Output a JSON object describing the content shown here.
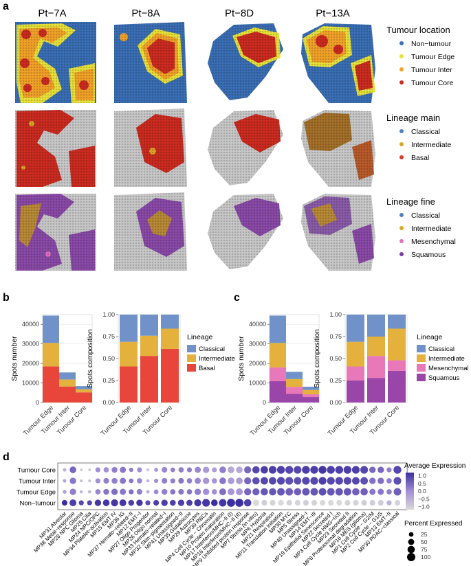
{
  "panel_a": {
    "label": "a",
    "samples": [
      "Pt−7A",
      "Pt−8A",
      "Pt−8D",
      "Pt−13A"
    ],
    "legends": [
      {
        "title": "Tumour location",
        "items": [
          {
            "label": "Non−tumour",
            "color": "#3a6fb5"
          },
          {
            "label": "Tumour Edge",
            "color": "#e8e23a"
          },
          {
            "label": "Tumour Inter",
            "color": "#f2a228"
          },
          {
            "label": "Tumour Core",
            "color": "#cc2b20"
          }
        ]
      },
      {
        "title": "Lineage main",
        "items": [
          {
            "label": "Classical",
            "color": "#4f7fc1"
          },
          {
            "label": "Intermediate",
            "color": "#d8a526"
          },
          {
            "label": "Basal",
            "color": "#d93a2b"
          }
        ]
      },
      {
        "title": "Lineage fine",
        "items": [
          {
            "label": "Classical",
            "color": "#4f7fc1"
          },
          {
            "label": "Intermediate",
            "color": "#d8a526"
          },
          {
            "label": "Mesenchymal",
            "color": "#e070c0"
          },
          {
            "label": "Squamous",
            "color": "#7a3aa8"
          }
        ]
      }
    ]
  },
  "panel_b_label": "b",
  "panel_c_label": "c",
  "panel_d_label": "d",
  "chart_data": [
    {
      "id": "b-counts",
      "type": "bar",
      "stacked": true,
      "categories": [
        "Tumour Edge",
        "Tumour Inter",
        "Tumour Core"
      ],
      "ylabel": "Spots number",
      "ylim": [
        0,
        45000
      ],
      "yticks": [
        "0",
        "10000",
        "20000",
        "30000",
        "40000"
      ],
      "series": [
        {
          "name": "Basal",
          "color": "#e8463a",
          "values": [
            18500,
            8200,
            5200
          ]
        },
        {
          "name": "Intermediate",
          "color": "#e3b13c",
          "values": [
            12000,
            3600,
            1600
          ]
        },
        {
          "name": "Classical",
          "color": "#7092c9",
          "values": [
            14000,
            3600,
            1600
          ]
        }
      ]
    },
    {
      "id": "b-composition",
      "type": "bar",
      "stacked": true,
      "categories": [
        "Tumour Edge",
        "Tumour Inter",
        "Tumour Core"
      ],
      "ylabel": "Spots composition",
      "ylim": [
        0,
        1
      ],
      "yticks": [
        "0.00",
        "0.25",
        "0.50",
        "0.75",
        "1.00"
      ],
      "legend_title": "Lineage",
      "legend": [
        "Classical",
        "Intermediate",
        "Basal"
      ],
      "series": [
        {
          "name": "Basal",
          "color": "#e8463a",
          "values": [
            0.41,
            0.53,
            0.61
          ]
        },
        {
          "name": "Intermediate",
          "color": "#e3b13c",
          "values": [
            0.28,
            0.23,
            0.23
          ]
        },
        {
          "name": "Classical",
          "color": "#7092c9",
          "values": [
            0.31,
            0.24,
            0.16
          ]
        }
      ]
    },
    {
      "id": "c-counts",
      "type": "bar",
      "stacked": true,
      "categories": [
        "Tumour Edge",
        "Tumour Inter",
        "Tumour Core"
      ],
      "ylabel": "Spots number",
      "ylim": [
        0,
        45000
      ],
      "yticks": [
        "0",
        "10000",
        "20000",
        "30000",
        "40000"
      ],
      "series": [
        {
          "name": "Squamous",
          "color": "#9a46a8",
          "values": [
            11000,
            4400,
            2800
          ]
        },
        {
          "name": "Mesenchymal",
          "color": "#e878b8",
          "values": [
            7000,
            3600,
            1400
          ]
        },
        {
          "name": "Intermediate",
          "color": "#e3b13c",
          "values": [
            12500,
            4000,
            2200
          ]
        },
        {
          "name": "Classical",
          "color": "#7092c9",
          "values": [
            14000,
            3700,
            1700
          ]
        }
      ]
    },
    {
      "id": "c-composition",
      "type": "bar",
      "stacked": true,
      "categories": [
        "Tumour Edge",
        "Tumour Inter",
        "Tumour Core"
      ],
      "ylabel": "Spots composition",
      "ylim": [
        0,
        1
      ],
      "yticks": [
        "0.00",
        "0.25",
        "0.50",
        "0.75",
        "1.00"
      ],
      "legend_title": "Lineage",
      "legend": [
        "Classical",
        "Intermediate",
        "Mesenchymal",
        "Squamous"
      ],
      "series": [
        {
          "name": "Squamous",
          "color": "#9a46a8",
          "values": [
            0.25,
            0.28,
            0.36
          ]
        },
        {
          "name": "Mesenchymal",
          "color": "#e878b8",
          "values": [
            0.16,
            0.25,
            0.12
          ]
        },
        {
          "name": "Intermediate",
          "color": "#e3b13c",
          "values": [
            0.28,
            0.22,
            0.36
          ]
        },
        {
          "name": "Classical",
          "color": "#7092c9",
          "values": [
            0.31,
            0.25,
            0.16
          ]
        }
      ]
    },
    {
      "id": "d-dotplot",
      "type": "scatter",
      "subtype": "dotplot",
      "rows": [
        "Tumour Core",
        "Tumour Inter",
        "Tumour Edge",
        "Non−tumour"
      ],
      "columns": [
        "MP31 Alveolar",
        "MP38 Metal−response",
        "MP28 NPC Glioma",
        "MP25 Cilia",
        "MP24 NPC/OPC",
        "MP34 Platelet−activation",
        "MP15 EMT IV",
        "MP36 IG",
        "MP37 Hemato−related−II",
        "MP12 EMT−I",
        "MP27 Oligo Progenitor",
        "MP26 Oligo normal",
        "MP33 Hemato−related−I",
        "MP32 Skin−pigmentation",
        "MP41 Unassigned−II",
        "MP35 Glutathione",
        "MP29 Astrocytes",
        "MP39 RBCs",
        "MP4 Cell Cycle − Chromatin",
        "MP10 Protein maturation",
        "MP17 Interferon/MHC−II (I)",
        "MP18 Interferon/MHC−II (II)",
        "MP9 Unfolded protein response",
        "MP7 Stress (in vitro)",
        "MP6 Hypoxia",
        "MP21 Respiration",
        "MP11 Translation initiation",
        "MP30 MYC",
        "MP5 Stress",
        "MP40 Unassigned−I",
        "MP14 EMT−III",
        "MP19 Epithelial Senescence",
        "MP22 Secreted I",
        "MP3 Cell Cycle HMG−rich",
        "MP23 Secreted II",
        "MP8 Proteasomal degradation",
        "MP16 MES (glioma)",
        "MP1 Cell Cycle − G2/M",
        "MP2 Cell Cycle − G1/S",
        "MP13 EMT−II",
        "MP30 PDAC−classical"
      ],
      "values": [
        [
          -0.6,
          0.5,
          -1.0,
          -0.9,
          0.0,
          0.0,
          0.2,
          0.3,
          0.2,
          0.0,
          -0.9,
          -0.1,
          0.1,
          0.2,
          0.2,
          0.2,
          0.1,
          -0.2,
          -0.3,
          0.2,
          -0.4,
          -0.4,
          0.5,
          0.9,
          1.0,
          1.0,
          1.0,
          0.9,
          0.9,
          1.0,
          1.0,
          1.1,
          1.0,
          1.0,
          1.0,
          1.0,
          0.9,
          0.5,
          0.5,
          0.2,
          0.9
        ],
        [
          -0.4,
          0.3,
          -0.7,
          -0.8,
          0.0,
          0.2,
          0.2,
          0.3,
          0.3,
          0.1,
          -0.6,
          0.0,
          0.2,
          0.2,
          0.3,
          0.2,
          0.1,
          -0.1,
          -0.1,
          0.3,
          -0.2,
          -0.2,
          0.5,
          0.8,
          0.9,
          0.9,
          0.9,
          0.8,
          0.8,
          0.9,
          0.9,
          1.0,
          0.9,
          0.9,
          0.9,
          0.9,
          0.8,
          0.4,
          0.4,
          0.2,
          0.8
        ],
        [
          -0.3,
          0.2,
          -0.6,
          -0.6,
          0.1,
          0.3,
          0.4,
          0.3,
          0.4,
          0.2,
          -0.5,
          0.1,
          0.2,
          0.3,
          0.3,
          0.3,
          0.2,
          0.0,
          0.0,
          0.4,
          -0.1,
          -0.1,
          0.5,
          0.6,
          0.7,
          0.7,
          0.7,
          0.6,
          0.6,
          0.7,
          0.7,
          0.8,
          0.7,
          0.7,
          0.7,
          0.6,
          0.6,
          0.3,
          0.3,
          0.2,
          0.6
        ],
        [
          1.2,
          1.0,
          0.9,
          0.9,
          1.1,
          1.1,
          1.1,
          1.1,
          1.0,
          1.1,
          0.8,
          1.0,
          1.0,
          1.0,
          1.0,
          1.0,
          1.1,
          1.1,
          1.2,
          1.1,
          1.2,
          1.2,
          1.0,
          -1.2,
          -1.0,
          -1.1,
          -1.2,
          -1.1,
          -1.1,
          -1.0,
          -1.1,
          -1.2,
          -1.2,
          -1.2,
          -1.1,
          -1.1,
          -1.0,
          -1.0,
          -1.0,
          -0.6,
          -1.1
        ]
      ],
      "percent": [
        [
          12,
          60,
          5,
          5,
          30,
          35,
          45,
          50,
          20,
          30,
          8,
          15,
          40,
          25,
          35,
          30,
          50,
          55,
          30,
          60,
          60,
          60,
          70,
          75,
          80,
          85,
          90,
          90,
          85,
          90,
          90,
          90,
          90,
          90,
          90,
          85,
          85,
          55,
          55,
          30,
          90
        ],
        [
          12,
          55,
          5,
          5,
          30,
          40,
          45,
          50,
          25,
          35,
          8,
          20,
          40,
          30,
          40,
          35,
          50,
          55,
          35,
          60,
          60,
          60,
          70,
          75,
          80,
          80,
          85,
          85,
          80,
          85,
          85,
          85,
          85,
          85,
          85,
          80,
          80,
          55,
          55,
          35,
          85
        ],
        [
          15,
          55,
          8,
          8,
          35,
          45,
          55,
          50,
          30,
          40,
          10,
          25,
          45,
          35,
          40,
          35,
          55,
          55,
          35,
          65,
          65,
          65,
          70,
          70,
          75,
          75,
          80,
          80,
          75,
          80,
          80,
          80,
          80,
          80,
          80,
          75,
          75,
          50,
          50,
          35,
          80
        ],
        [
          40,
          65,
          30,
          30,
          55,
          60,
          70,
          65,
          45,
          55,
          30,
          40,
          55,
          45,
          55,
          50,
          70,
          85,
          60,
          80,
          95,
          95,
          75,
          55,
          40,
          40,
          40,
          40,
          40,
          40,
          40,
          40,
          40,
          40,
          40,
          40,
          40,
          40,
          40,
          30,
          40
        ]
      ],
      "legend_expression": {
        "title": "Average Expression",
        "ticks": [
          "1.0",
          "0.5",
          "0.0",
          "−0.5",
          "−1.0"
        ],
        "range": [
          -1.2,
          1.2
        ],
        "low_color": "#d9d9d9",
        "high_color": "#3b2fa0"
      },
      "legend_percent": {
        "title": "Percent Expressed",
        "ticks": [
          "25",
          "50",
          "75",
          "100"
        ]
      }
    }
  ]
}
